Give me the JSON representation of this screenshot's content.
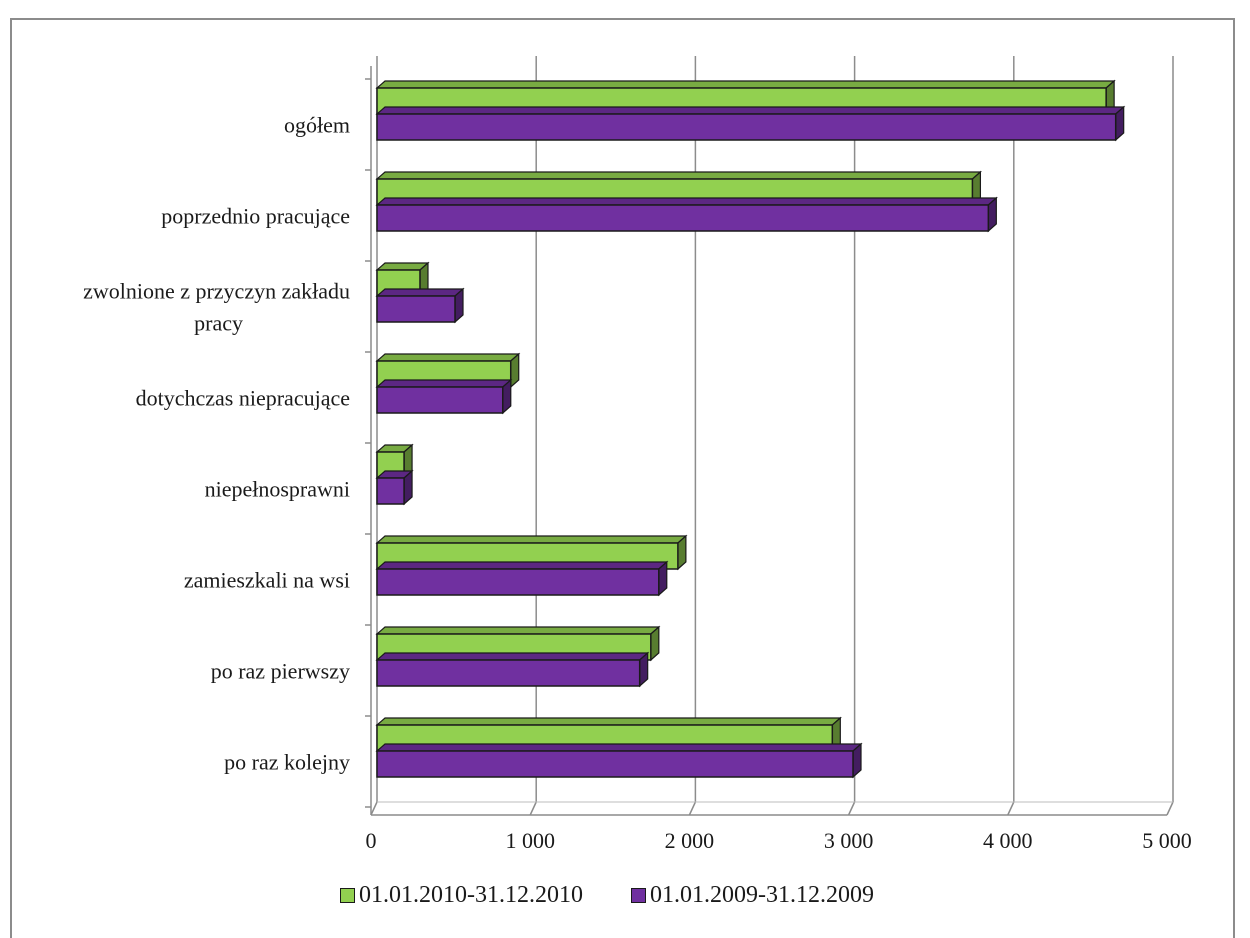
{
  "chart_data": {
    "type": "bar",
    "orientation": "horizontal",
    "style": "3d",
    "title": "",
    "xlabel": "",
    "ylabel": "",
    "xlim": [
      0,
      5000
    ],
    "xticks": [
      0,
      1000,
      2000,
      3000,
      4000,
      5000
    ],
    "xtick_labels": [
      "0",
      "1 000",
      "2 000",
      "3 000",
      "4 000",
      "5 000"
    ],
    "grid": true,
    "legend_position": "bottom",
    "categories": [
      "ogółem",
      "poprzednio pracujące",
      "zwolnione z przyczyn zakładu pracy",
      "dotychczas niepracujące",
      "niepełnosprawni",
      "zamieszkali na wsi",
      "po raz pierwszy",
      "po raz kolejny"
    ],
    "series": [
      {
        "name": "01.01.2010-31.12.2010",
        "color": "#92d050",
        "values": [
          4580,
          3740,
          270,
          840,
          170,
          1890,
          1720,
          2860
        ]
      },
      {
        "name": "01.01.2009-31.12.2009",
        "color": "#7030a0",
        "values": [
          4640,
          3840,
          490,
          790,
          170,
          1770,
          1650,
          2990
        ]
      }
    ]
  }
}
